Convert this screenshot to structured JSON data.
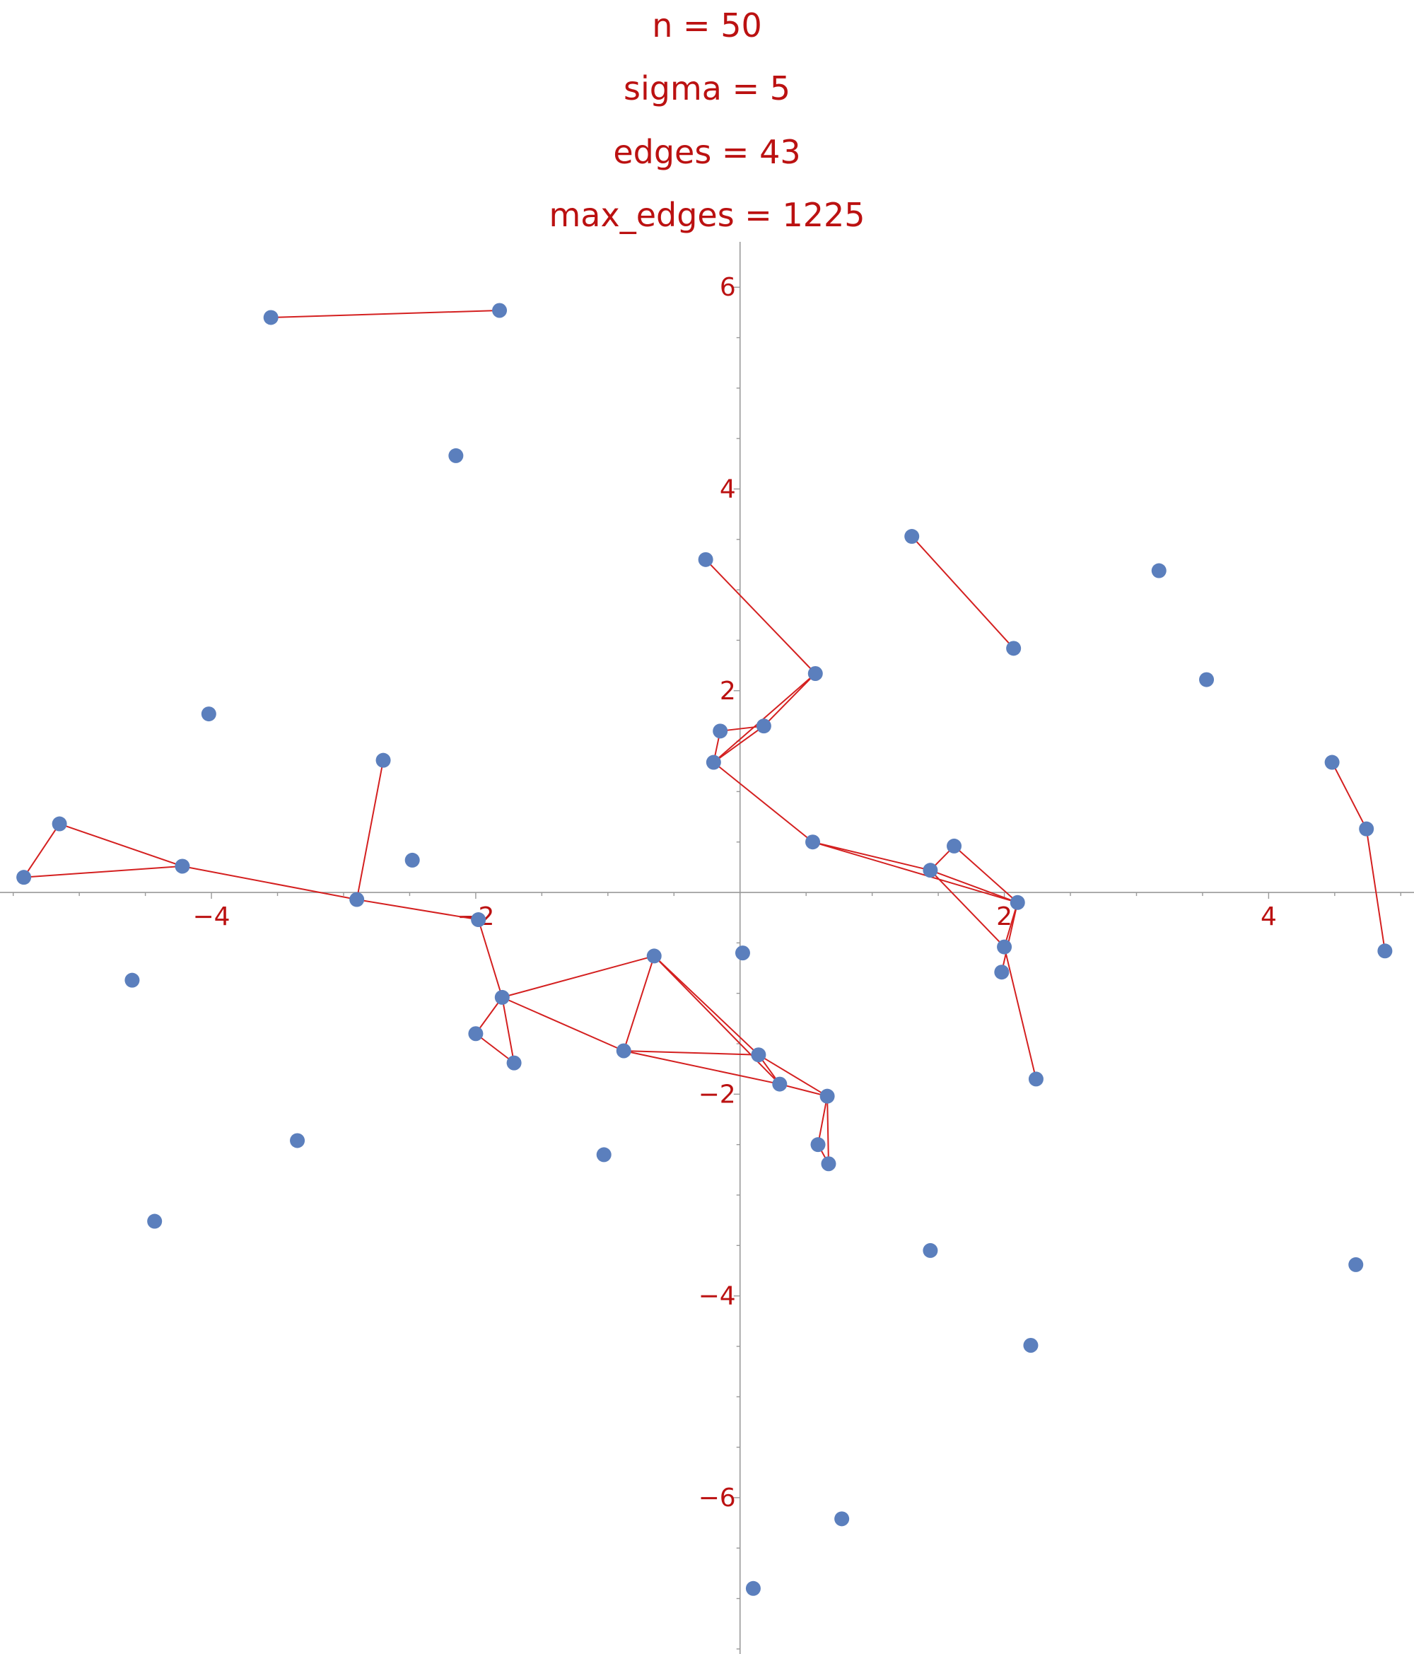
{
  "colors": {
    "text": "#bb1111",
    "axis": "#999999",
    "edge": "#d42020",
    "point": "#5b7fbd"
  },
  "chart_data": {
    "type": "scatter",
    "title_lines": [
      "n = 50",
      "sigma = 5",
      "edges = 43",
      "max_edges = 1225"
    ],
    "xlabel": "",
    "ylabel": "",
    "xlim": [
      -5.6,
      5.1
    ],
    "ylim": [
      -7.55,
      6.45
    ],
    "xticks": [
      -4,
      -2,
      2,
      4
    ],
    "xtick_labels": [
      "−4",
      "−2",
      "2",
      "4"
    ],
    "yticks": [
      6,
      4,
      2,
      -2,
      -4,
      -6
    ],
    "ytick_labels": [
      "6",
      "4",
      "2",
      "−2",
      "−4",
      "−6"
    ],
    "grid": false,
    "points": [
      [
        -3.55,
        5.7
      ],
      [
        -1.82,
        5.77
      ],
      [
        -2.15,
        4.33
      ],
      [
        -4.02,
        1.77
      ],
      [
        -2.7,
        1.31
      ],
      [
        -5.15,
        0.68
      ],
      [
        -5.42,
        0.15
      ],
      [
        -4.22,
        0.26
      ],
      [
        -2.48,
        0.32
      ],
      [
        -2.9,
        -0.07
      ],
      [
        -1.98,
        -0.27
      ],
      [
        -4.6,
        -0.87
      ],
      [
        -1.8,
        -1.04
      ],
      [
        -2.0,
        -1.4
      ],
      [
        -1.71,
        -1.69
      ],
      [
        -0.88,
        -1.57
      ],
      [
        -0.65,
        -0.63
      ],
      [
        -3.35,
        -2.46
      ],
      [
        -4.43,
        -3.26
      ],
      [
        -1.03,
        -2.6
      ],
      [
        0.02,
        -0.6
      ],
      [
        0.14,
        -1.61
      ],
      [
        0.3,
        -1.9
      ],
      [
        0.66,
        -2.02
      ],
      [
        0.59,
        -2.5
      ],
      [
        0.67,
        -2.69
      ],
      [
        -0.26,
        3.3
      ],
      [
        -0.15,
        1.6
      ],
      [
        -0.2,
        1.29
      ],
      [
        0.18,
        1.65
      ],
      [
        0.57,
        2.17
      ],
      [
        0.55,
        0.5
      ],
      [
        1.3,
        3.53
      ],
      [
        2.07,
        2.42
      ],
      [
        3.17,
        3.19
      ],
      [
        3.53,
        2.11
      ],
      [
        1.62,
        0.46
      ],
      [
        1.44,
        0.22
      ],
      [
        2.1,
        -0.1
      ],
      [
        2.0,
        -0.54
      ],
      [
        1.98,
        -0.79
      ],
      [
        2.24,
        -1.85
      ],
      [
        1.44,
        -3.55
      ],
      [
        2.2,
        -4.49
      ],
      [
        4.66,
        -3.69
      ],
      [
        4.88,
        -0.58
      ],
      [
        4.74,
        0.63
      ],
      [
        4.48,
        1.29
      ],
      [
        0.77,
        -6.21
      ],
      [
        0.1,
        -6.9
      ]
    ],
    "edges": [
      [
        0,
        1
      ],
      [
        5,
        6
      ],
      [
        5,
        7
      ],
      [
        6,
        7
      ],
      [
        7,
        9
      ],
      [
        4,
        9
      ],
      [
        9,
        10
      ],
      [
        10,
        12
      ],
      [
        12,
        13
      ],
      [
        13,
        14
      ],
      [
        12,
        14
      ],
      [
        12,
        16
      ],
      [
        12,
        15
      ],
      [
        15,
        16
      ],
      [
        15,
        21
      ],
      [
        15,
        22
      ],
      [
        16,
        21
      ],
      [
        21,
        22
      ],
      [
        21,
        23
      ],
      [
        22,
        23
      ],
      [
        23,
        24
      ],
      [
        23,
        25
      ],
      [
        24,
        25
      ],
      [
        26,
        30
      ],
      [
        27,
        29
      ],
      [
        27,
        28
      ],
      [
        28,
        29
      ],
      [
        28,
        30
      ],
      [
        29,
        30
      ],
      [
        28,
        31
      ],
      [
        31,
        37
      ],
      [
        31,
        38
      ],
      [
        36,
        37
      ],
      [
        36,
        38
      ],
      [
        37,
        38
      ],
      [
        38,
        39
      ],
      [
        38,
        40
      ],
      [
        39,
        41
      ],
      [
        32,
        33
      ],
      [
        45,
        46
      ],
      [
        46,
        47
      ],
      [
        22,
        16
      ],
      [
        37,
        39
      ]
    ]
  }
}
